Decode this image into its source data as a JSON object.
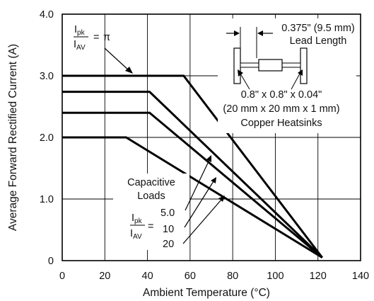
{
  "chart_data": {
    "type": "line",
    "xlabel": "Ambient Temperature (°C)",
    "ylabel": "Average Forward Rectified Current (A)",
    "xlim": [
      0,
      140
    ],
    "ylim": [
      0,
      4.0
    ],
    "x_ticks": [
      "0",
      "20",
      "40",
      "60",
      "80",
      "100",
      "120",
      "140"
    ],
    "y_ticks": [
      "0",
      "1.0",
      "2.0",
      "3.0",
      "4.0"
    ],
    "grid": true,
    "series": [
      {
        "name": "π",
        "x": [
          0,
          57,
          122
        ],
        "y": [
          3.0,
          3.0,
          0.05
        ]
      },
      {
        "name": "5.0",
        "x": [
          0,
          41,
          122
        ],
        "y": [
          2.74,
          2.74,
          0.05
        ]
      },
      {
        "name": "10",
        "x": [
          0,
          41,
          122
        ],
        "y": [
          2.4,
          2.4,
          0.05
        ]
      },
      {
        "name": "20",
        "x": [
          0,
          30,
          122
        ],
        "y": [
          2.0,
          2.0,
          0.05
        ]
      }
    ],
    "annotations": {
      "ratio_I": "I",
      "ratio_pk": "pk",
      "ratio_AV": "AV",
      "ratio_equals": "=",
      "pi_value": "π",
      "lead_length_dim": "0.375\" (9.5 mm)",
      "lead_length_label": "Lead Length",
      "heatsink_dim_in": "0.8\" x 0.8\" x 0.04\"",
      "heatsink_dim_mm": "(20 mm x 20 mm x 1 mm)",
      "heatsink_label": "Copper Heatsinks",
      "capacitive_line1": "Capacitive",
      "capacitive_line2": "Loads",
      "ratio_values": [
        "5.0",
        "10",
        "20"
      ]
    }
  }
}
